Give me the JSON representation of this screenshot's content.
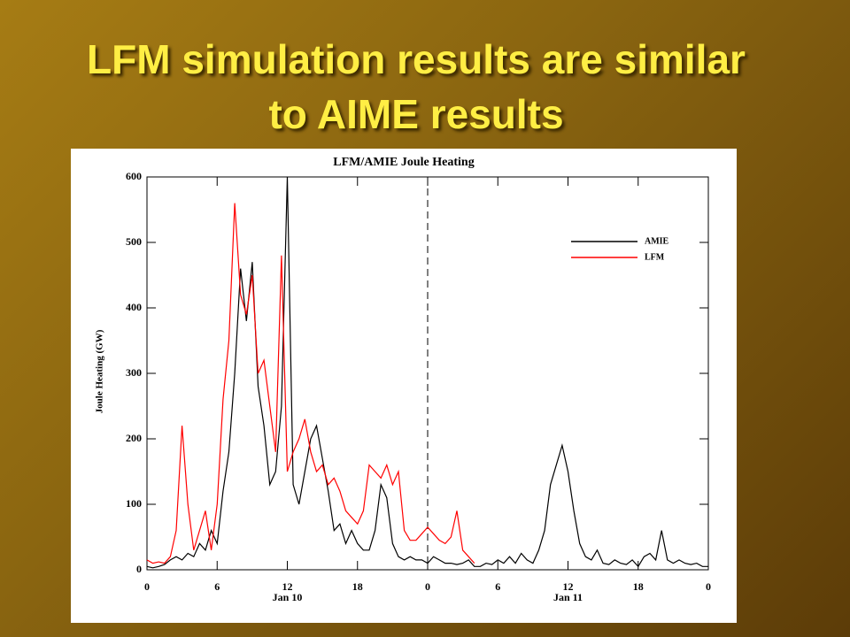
{
  "slide": {
    "title_lines": [
      "LFM  simulation results are similar",
      "to AIME results"
    ]
  },
  "chart_data": {
    "type": "line",
    "title": "LFM/AMIE Joule Heating",
    "ylabel": "Joule Heating (GW)",
    "x": [
      0,
      0.5,
      1,
      1.5,
      2,
      2.5,
      3,
      3.5,
      4,
      4.5,
      5,
      5.5,
      6,
      6.5,
      7,
      7.5,
      8,
      8.5,
      9,
      9.5,
      10,
      10.5,
      11,
      11.5,
      12,
      12.5,
      13,
      13.5,
      14,
      14.5,
      15,
      15.5,
      16,
      16.5,
      17,
      17.5,
      18,
      18.5,
      19,
      19.5,
      20,
      20.5,
      21,
      21.5,
      22,
      22.5,
      23,
      23.5,
      24,
      24.5,
      25,
      25.5,
      26,
      26.5,
      27,
      27.5,
      28,
      28.5,
      29,
      29.5,
      30,
      30.5,
      31,
      31.5,
      32,
      32.5,
      33,
      33.5,
      34,
      34.5,
      35,
      35.5,
      36,
      36.5,
      37,
      37.5,
      38,
      38.5,
      39,
      39.5,
      40,
      40.5,
      41,
      41.5,
      42,
      42.5,
      43,
      43.5,
      44,
      44.5,
      45,
      45.5,
      46,
      46.5,
      47,
      47.5,
      48
    ],
    "series": [
      {
        "name": "AMIE",
        "color": "#000000",
        "values": [
          5,
          3,
          5,
          8,
          15,
          20,
          15,
          25,
          20,
          40,
          30,
          60,
          40,
          120,
          180,
          300,
          460,
          380,
          470,
          280,
          220,
          130,
          150,
          250,
          600,
          130,
          100,
          150,
          200,
          220,
          170,
          120,
          60,
          70,
          40,
          60,
          40,
          30,
          30,
          60,
          130,
          110,
          40,
          20,
          15,
          20,
          15,
          15,
          10,
          20,
          15,
          10,
          10,
          8,
          10,
          15,
          5,
          5,
          10,
          8,
          15,
          10,
          20,
          10,
          25,
          15,
          10,
          30,
          60,
          130,
          160,
          190,
          150,
          90,
          40,
          20,
          15,
          30,
          10,
          8,
          15,
          10,
          8,
          15,
          5,
          20,
          25,
          15,
          60,
          15,
          10,
          15,
          10,
          8,
          10,
          5,
          5
        ]
      },
      {
        "name": "LFM",
        "color": "#ff0000",
        "values": [
          15,
          10,
          12,
          10,
          20,
          60,
          220,
          100,
          30,
          60,
          90,
          30,
          100,
          260,
          350,
          560,
          420,
          390,
          450,
          300,
          320,
          250,
          180,
          480,
          150,
          180,
          200,
          230,
          180,
          150,
          160,
          130,
          140,
          120,
          90,
          80,
          70,
          90,
          160,
          150,
          140,
          160,
          130,
          150,
          60,
          45,
          45,
          55,
          65,
          55,
          45,
          40,
          50,
          90,
          30,
          20,
          10,
          null,
          null,
          null,
          null,
          null,
          null,
          null,
          null,
          null,
          null,
          null,
          null,
          null,
          null,
          null,
          null,
          null,
          null,
          null,
          null,
          null,
          null,
          null,
          null,
          null,
          null,
          null,
          null,
          null,
          null,
          null,
          null,
          null,
          null,
          null,
          null,
          null,
          null,
          null,
          null
        ]
      }
    ],
    "xlim": [
      0,
      48
    ],
    "ylim": [
      0,
      600
    ],
    "xticks": [
      0,
      6,
      12,
      18,
      {
        "value": 24,
        "label": "0"
      },
      {
        "value": 30,
        "label": "6"
      },
      {
        "value": 36,
        "label": "12"
      },
      {
        "value": 42,
        "label": "18"
      },
      {
        "value": 48,
        "label": "0"
      }
    ],
    "yticks": [
      0,
      100,
      200,
      300,
      400,
      500,
      600
    ],
    "vlines": [
      24
    ],
    "annotations": [
      {
        "x": 12,
        "text": "Jan 10"
      },
      {
        "x": 36,
        "text": "Jan 11"
      }
    ],
    "legend": "upper right"
  }
}
